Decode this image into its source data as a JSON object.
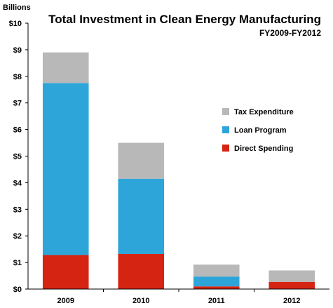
{
  "chart_data": {
    "type": "bar",
    "stacked": true,
    "title": "Total Investment in Clean Energy Manufacturing",
    "subtitle": "FY2009-FY2012",
    "yunit": "Billions",
    "ylim": [
      0,
      10
    ],
    "yticks": [
      "$0",
      "$1",
      "$2",
      "$3",
      "$4",
      "$5",
      "$6",
      "$7",
      "$8",
      "$9",
      "$10"
    ],
    "categories": [
      "2009",
      "2010",
      "2011",
      "2012"
    ],
    "series": [
      {
        "name": "Direct Spending",
        "color": "#d62412",
        "values": [
          1.28,
          1.32,
          0.1,
          0.27
        ]
      },
      {
        "name": "Loan Program",
        "color": "#2ea5d8",
        "values": [
          6.47,
          2.83,
          0.37,
          0.0
        ]
      },
      {
        "name": "Tax Expenditure",
        "color": "#b8b8b8",
        "values": [
          1.15,
          1.35,
          0.45,
          0.43
        ]
      }
    ],
    "legend_order": [
      "Tax Expenditure",
      "Loan Program",
      "Direct Spending"
    ],
    "legend_position": "right",
    "grid": false
  }
}
